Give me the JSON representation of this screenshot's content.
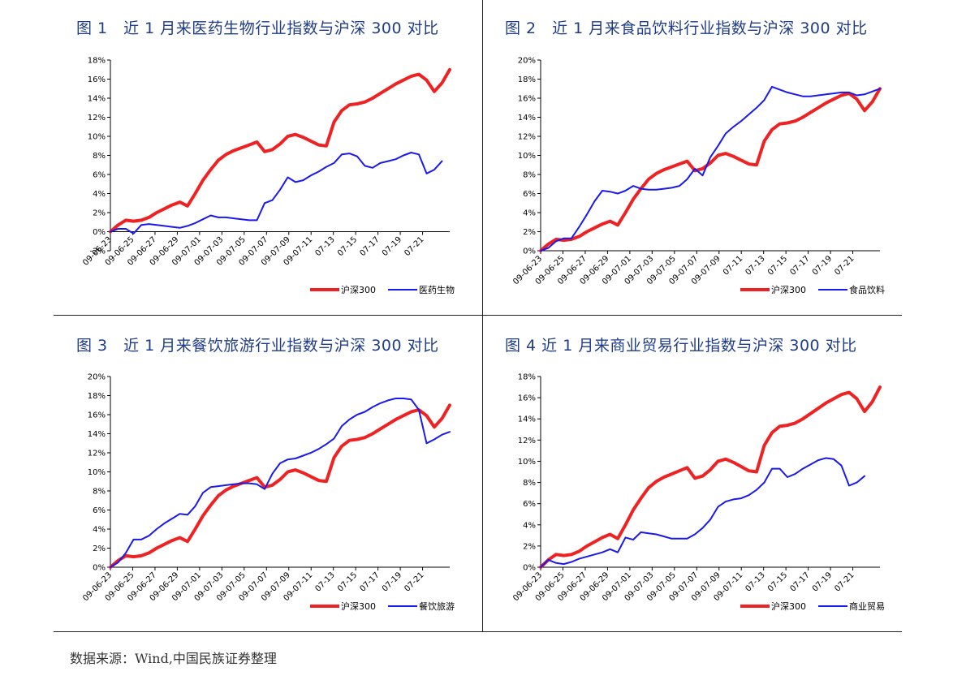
{
  "panels": [
    {
      "title": "图 1　近 1 月来医药生物行业指数与沪深 300 对比",
      "chart_data": {
        "type": "line",
        "yticks": [
          "-2%",
          "0%",
          "2%",
          "4%",
          "6%",
          "8%",
          "10%",
          "12%",
          "14%",
          "16%",
          "18%"
        ],
        "ylim": [
          -2,
          18
        ],
        "xticks": [
          "09-06-23",
          "09-06-25",
          "09-06-27",
          "09-06-29",
          "09-07-01",
          "09-07-03",
          "09-07-05",
          "09-07-07",
          "09-07-09",
          "09-07-11",
          "07-13",
          "07-15",
          "07-17",
          "07-19",
          "07-21"
        ],
        "xlim": [
          0,
          22
        ],
        "grid": false,
        "legend_position": "bottom-right",
        "series": [
          {
            "name": "沪深300",
            "color": "#ee2222",
            "width": 4,
            "x": [
              0,
              0.5,
              1,
              1.5,
              2,
              2.5,
              3,
              3.5,
              4,
              4.5,
              5,
              5.5,
              6,
              6.5,
              7,
              7.5,
              8,
              8.5,
              9,
              9.5,
              10,
              10.5,
              11,
              11.5,
              12,
              12.5,
              13,
              13.5,
              14,
              14.5,
              15,
              15.5,
              16,
              16.5,
              17,
              17.5,
              18,
              18.5,
              19,
              19.5,
              20,
              20.5,
              21,
              21.5,
              22
            ],
            "y": [
              0,
              0.7,
              1.2,
              1.1,
              1.2,
              1.5,
              2,
              2.4,
              2.8,
              3.1,
              2.7,
              4,
              5.4,
              6.5,
              7.5,
              8.1,
              8.5,
              8.8,
              9.1,
              9.4,
              8.4,
              8.6,
              9.2,
              10,
              10.2,
              9.9,
              9.5,
              9.1,
              9,
              11.5,
              12.7,
              13.3,
              13.4,
              13.6,
              14,
              14.5,
              15,
              15.5,
              15.9,
              16.3,
              16.5,
              15.9,
              14.7,
              15.6,
              17
            ]
          },
          {
            "name": "医药生物",
            "color": "#1a1aee",
            "width": 2,
            "x": [
              0,
              0.5,
              1,
              1.5,
              2,
              2.5,
              3,
              3.5,
              4,
              4.5,
              5,
              5.5,
              6,
              6.5,
              7,
              7.5,
              8,
              8.5,
              9,
              9.5,
              10,
              10.5,
              11,
              11.5,
              12,
              12.5,
              13,
              13.5,
              14,
              14.5,
              15,
              15.5,
              16,
              16.5,
              17,
              17.5,
              18,
              18.5,
              19,
              19.5,
              20,
              20.5,
              21,
              21.5,
              22
            ],
            "y": [
              0,
              0.3,
              0.3,
              -0.2,
              0.7,
              0.8,
              0.7,
              0.6,
              0.5,
              0.4,
              0.6,
              0.9,
              1.3,
              1.7,
              1.5,
              1.5,
              1.4,
              1.3,
              1.2,
              1.2,
              3,
              3.3,
              4.4,
              5.7,
              5.2,
              5.4,
              5.9,
              6.3,
              6.8,
              7.2,
              8.1,
              8.2,
              7.9,
              6.9,
              6.7,
              7.2,
              7.4,
              7.6,
              8,
              8.3,
              8.1,
              6.1,
              6.5,
              7.4,
              null
            ]
          }
        ]
      }
    },
    {
      "title": "图 2　近 1 月来食品饮料行业指数与沪深 300 对比",
      "chart_data": {
        "type": "line",
        "yticks": [
          "0%",
          "2%",
          "4%",
          "6%",
          "8%",
          "10%",
          "12%",
          "14%",
          "16%",
          "18%",
          "20%"
        ],
        "ylim": [
          0,
          20
        ],
        "xticks": [
          "09-06-23",
          "09-06-25",
          "09-06-27",
          "09-06-29",
          "09-07-01",
          "09-07-03",
          "09-07-05",
          "09-07-07",
          "09-07-09",
          "07-11",
          "07-13",
          "07-15",
          "07-17",
          "07-19",
          "07-21"
        ],
        "xlim": [
          0,
          22
        ],
        "grid": false,
        "legend_position": "bottom-right",
        "series": [
          {
            "name": "沪深300",
            "color": "#ee2222",
            "width": 4,
            "x": [
              0,
              0.5,
              1,
              1.5,
              2,
              2.5,
              3,
              3.5,
              4,
              4.5,
              5,
              5.5,
              6,
              6.5,
              7,
              7.5,
              8,
              8.5,
              9,
              9.5,
              10,
              10.5,
              11,
              11.5,
              12,
              12.5,
              13,
              13.5,
              14,
              14.5,
              15,
              15.5,
              16,
              16.5,
              17,
              17.5,
              18,
              18.5,
              19,
              19.5,
              20,
              20.5,
              21,
              21.5,
              22
            ],
            "y": [
              0,
              0.7,
              1.2,
              1.1,
              1.2,
              1.5,
              2,
              2.4,
              2.8,
              3.1,
              2.7,
              4,
              5.4,
              6.5,
              7.5,
              8.1,
              8.5,
              8.8,
              9.1,
              9.4,
              8.4,
              8.6,
              9.2,
              10,
              10.2,
              9.9,
              9.5,
              9.1,
              9,
              11.5,
              12.7,
              13.3,
              13.4,
              13.6,
              14,
              14.5,
              15,
              15.5,
              15.9,
              16.3,
              16.5,
              15.9,
              14.7,
              15.6,
              17
            ]
          },
          {
            "name": "食品饮料",
            "color": "#1a1aee",
            "width": 2,
            "x": [
              0,
              0.5,
              1,
              1.5,
              2,
              2.5,
              3,
              3.5,
              4,
              4.5,
              5,
              5.5,
              6,
              6.5,
              7,
              7.5,
              8,
              8.5,
              9,
              9.5,
              10,
              10.5,
              11,
              11.5,
              12,
              12.5,
              13,
              13.5,
              14,
              14.5,
              15,
              15.5,
              16,
              16.5,
              17,
              17.5,
              18,
              18.5,
              19,
              19.5,
              20,
              20.5,
              21,
              21.5,
              22
            ],
            "y": [
              0,
              0.3,
              1,
              1.3,
              1.3,
              2.5,
              3.8,
              5.2,
              6.3,
              6.2,
              6,
              6.3,
              6.8,
              6.5,
              6.4,
              6.4,
              6.5,
              6.6,
              6.8,
              7.5,
              8.6,
              7.9,
              9.8,
              11,
              12.3,
              13,
              13.6,
              14.3,
              15,
              15.8,
              17.2,
              16.9,
              16.6,
              16.4,
              16.2,
              16.2,
              16.3,
              16.4,
              16.5,
              16.6,
              16.6,
              16.3,
              16.4,
              16.7,
              17
            ]
          }
        ]
      }
    },
    {
      "title": "图 3　近 1 月来餐饮旅游行业指数与沪深 300 对比",
      "chart_data": {
        "type": "line",
        "yticks": [
          "0%",
          "2%",
          "4%",
          "6%",
          "8%",
          "10%",
          "12%",
          "14%",
          "16%",
          "18%",
          "20%"
        ],
        "ylim": [
          0,
          20
        ],
        "xticks": [
          "09-06-23",
          "09-06-25",
          "09-06-27",
          "09-06-29",
          "09-07-01",
          "09-07-03",
          "09-07-05",
          "09-07-07",
          "09-07-09",
          "09-07-11",
          "07-13",
          "07-15",
          "07-17",
          "07-19",
          "07-21"
        ],
        "xlim": [
          0,
          22
        ],
        "grid": false,
        "legend_position": "bottom-right",
        "series": [
          {
            "name": "沪深300",
            "color": "#ee2222",
            "width": 4,
            "x": [
              0,
              0.5,
              1,
              1.5,
              2,
              2.5,
              3,
              3.5,
              4,
              4.5,
              5,
              5.5,
              6,
              6.5,
              7,
              7.5,
              8,
              8.5,
              9,
              9.5,
              10,
              10.5,
              11,
              11.5,
              12,
              12.5,
              13,
              13.5,
              14,
              14.5,
              15,
              15.5,
              16,
              16.5,
              17,
              17.5,
              18,
              18.5,
              19,
              19.5,
              20,
              20.5,
              21,
              21.5,
              22
            ],
            "y": [
              0,
              0.7,
              1.2,
              1.1,
              1.2,
              1.5,
              2,
              2.4,
              2.8,
              3.1,
              2.7,
              4,
              5.4,
              6.5,
              7.5,
              8.1,
              8.5,
              8.8,
              9.1,
              9.4,
              8.4,
              8.6,
              9.2,
              10,
              10.2,
              9.9,
              9.5,
              9.1,
              9,
              11.5,
              12.7,
              13.3,
              13.4,
              13.6,
              14,
              14.5,
              15,
              15.5,
              15.9,
              16.3,
              16.5,
              15.9,
              14.7,
              15.6,
              17
            ]
          },
          {
            "name": "餐饮旅游",
            "color": "#1a1aee",
            "width": 2,
            "x": [
              0,
              0.5,
              1,
              1.5,
              2,
              2.5,
              3,
              3.5,
              4,
              4.5,
              5,
              5.5,
              6,
              6.5,
              7,
              7.5,
              8,
              8.5,
              9,
              9.5,
              10,
              10.5,
              11,
              11.5,
              12,
              12.5,
              13,
              13.5,
              14,
              14.5,
              15,
              15.5,
              16,
              16.5,
              17,
              17.5,
              18,
              18.5,
              19,
              19.5,
              20,
              20.5,
              21,
              21.5,
              22
            ],
            "y": [
              0,
              0.5,
              1.5,
              2.9,
              2.9,
              3.3,
              4,
              4.6,
              5.1,
              5.6,
              5.5,
              6.4,
              7.8,
              8.4,
              8.5,
              8.6,
              8.7,
              8.8,
              8.8,
              8.7,
              8.2,
              9.8,
              10.9,
              11.3,
              11.4,
              11.7,
              12,
              12.4,
              12.9,
              13.5,
              14.8,
              15.5,
              16,
              16.3,
              16.8,
              17.2,
              17.5,
              17.7,
              17.7,
              17.6,
              16.5,
              13,
              13.4,
              13.9,
              14.2
            ]
          }
        ]
      }
    },
    {
      "title": "图 4  近 1 月来商业贸易行业指数与沪深 300 对比",
      "chart_data": {
        "type": "line",
        "yticks": [
          "0%",
          "2%",
          "4%",
          "6%",
          "8%",
          "10%",
          "12%",
          "14%",
          "16%",
          "18%"
        ],
        "ylim": [
          0,
          18
        ],
        "xticks": [
          "09-06-23",
          "09-06-25",
          "09-06-27",
          "09-06-29",
          "09-07-01",
          "09-07-03",
          "09-07-05",
          "09-07-07",
          "09-07-09",
          "09-07-11",
          "07-13",
          "07-15",
          "07-17",
          "07-19",
          "07-21"
        ],
        "xlim": [
          0,
          22
        ],
        "grid": false,
        "legend_position": "bottom-right",
        "series": [
          {
            "name": "沪深300",
            "color": "#ee2222",
            "width": 4,
            "x": [
              0,
              0.5,
              1,
              1.5,
              2,
              2.5,
              3,
              3.5,
              4,
              4.5,
              5,
              5.5,
              6,
              6.5,
              7,
              7.5,
              8,
              8.5,
              9,
              9.5,
              10,
              10.5,
              11,
              11.5,
              12,
              12.5,
              13,
              13.5,
              14,
              14.5,
              15,
              15.5,
              16,
              16.5,
              17,
              17.5,
              18,
              18.5,
              19,
              19.5,
              20,
              20.5,
              21,
              21.5,
              22
            ],
            "y": [
              0,
              0.7,
              1.2,
              1.1,
              1.2,
              1.5,
              2,
              2.4,
              2.8,
              3.1,
              2.7,
              4,
              5.4,
              6.5,
              7.5,
              8.1,
              8.5,
              8.8,
              9.1,
              9.4,
              8.4,
              8.6,
              9.2,
              10,
              10.2,
              9.9,
              9.5,
              9.1,
              9,
              11.5,
              12.7,
              13.3,
              13.4,
              13.6,
              14,
              14.5,
              15,
              15.5,
              15.9,
              16.3,
              16.5,
              15.9,
              14.7,
              15.6,
              17
            ]
          },
          {
            "name": "商业贸易",
            "color": "#1a1aee",
            "width": 2,
            "x": [
              0,
              0.5,
              1,
              1.5,
              2,
              2.5,
              3,
              3.5,
              4,
              4.5,
              5,
              5.5,
              6,
              6.5,
              7,
              7.5,
              8,
              8.5,
              9,
              9.5,
              10,
              10.5,
              11,
              11.5,
              12,
              12.5,
              13,
              13.5,
              14,
              14.5,
              15,
              15.5,
              16,
              16.5,
              17,
              17.5,
              18,
              18.5,
              19,
              19.5,
              20,
              20.5,
              21,
              21.5,
              22
            ],
            "y": [
              0,
              0.7,
              0.4,
              0.3,
              0.5,
              0.8,
              1,
              1.2,
              1.4,
              1.7,
              1.4,
              2.8,
              2.6,
              3.3,
              3.2,
              3.1,
              2.9,
              2.7,
              2.7,
              2.7,
              3.1,
              3.7,
              4.5,
              5.7,
              6.2,
              6.4,
              6.5,
              6.8,
              7.3,
              8,
              9.3,
              9.3,
              8.5,
              8.8,
              9.3,
              9.7,
              10.1,
              10.3,
              10.2,
              9.6,
              7.7,
              8,
              8.6,
              null,
              null
            ]
          }
        ]
      }
    }
  ],
  "footer": {
    "source": "数据来源：Wind,中国民族证券整理"
  }
}
